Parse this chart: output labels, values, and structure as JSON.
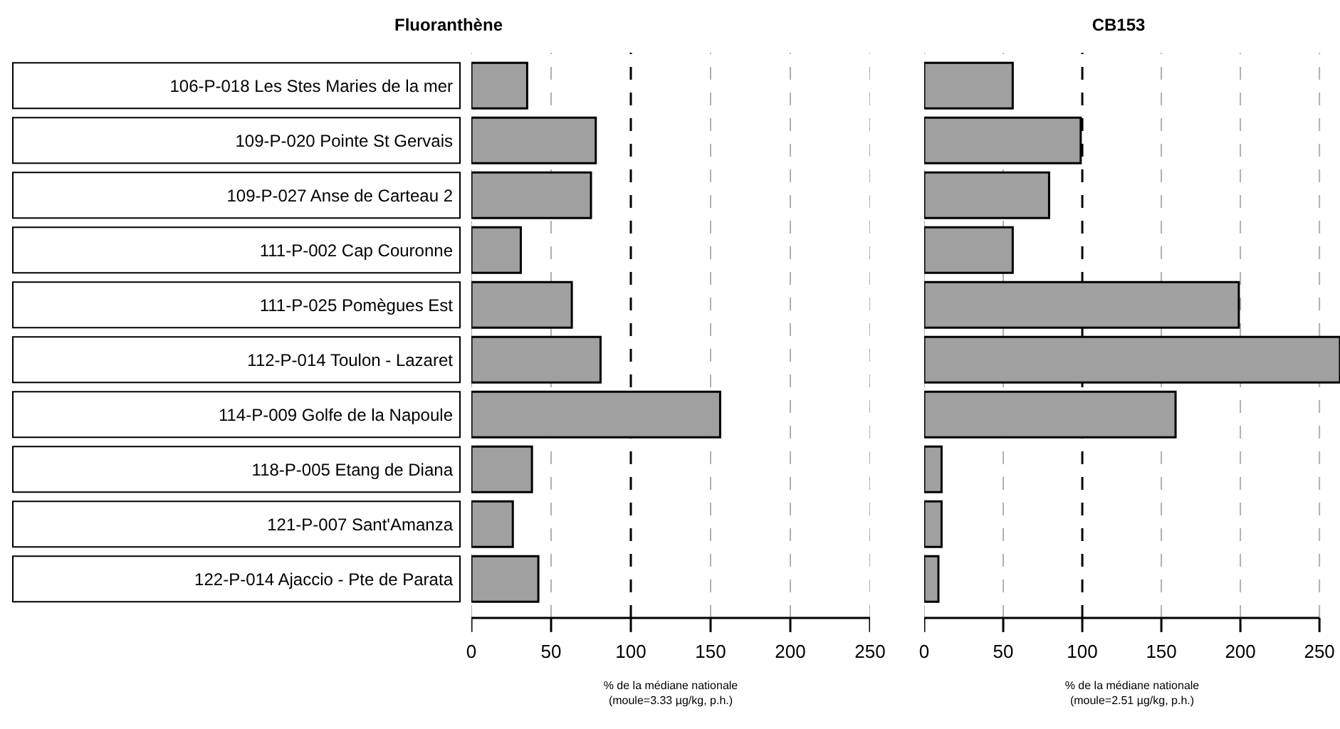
{
  "chart_data": [
    {
      "type": "bar",
      "orientation": "horizontal",
      "title": "Fluoranthène",
      "xlabel": "% de la médiane nationale\n(moule=3.33 µg/kg, p.h.)",
      "categories": [
        "106-P-018 Les Stes Maries de la mer",
        "109-P-020 Pointe St Gervais",
        "109-P-027 Anse de Carteau 2",
        "111-P-002 Cap Couronne",
        "111-P-025 Pomègues Est",
        "112-P-014 Toulon - Lazaret",
        "114-P-009 Golfe de la Napoule",
        "118-P-005 Etang de Diana",
        "121-P-007 Sant'Amanza",
        "122-P-014 Ajaccio - Pte de Parata"
      ],
      "values": [
        35,
        78,
        75,
        31,
        63,
        81,
        156,
        38,
        26,
        42
      ],
      "color": "#a0a0a0",
      "xlim": [
        0,
        250
      ],
      "xticks": [
        0,
        50,
        100,
        150,
        200,
        250
      ],
      "grid": "x",
      "ref_lines": [
        {
          "axis": "x",
          "value": 100,
          "color": "#000000",
          "line_style": "dashed"
        }
      ]
    },
    {
      "type": "bar",
      "orientation": "horizontal",
      "title": "CB153",
      "xlabel": "% de la médiane nationale\n(moule=2.51 µg/kg, p.h.)",
      "categories": [
        null,
        null,
        null,
        null,
        null,
        null,
        null,
        null,
        null,
        null
      ],
      "values": [
        56,
        99,
        79,
        56,
        199,
        263,
        159,
        11,
        11,
        9
      ],
      "color": "#a0a0a0",
      "xlim": [
        0,
        263
      ],
      "xticks": [
        0,
        50,
        100,
        150,
        200,
        250
      ],
      "grid": "x",
      "tick_labels": "x",
      "ref_lines": [
        {
          "axis": "x",
          "value": 100,
          "color": "#000000",
          "line_style": "dashed"
        }
      ]
    }
  ]
}
